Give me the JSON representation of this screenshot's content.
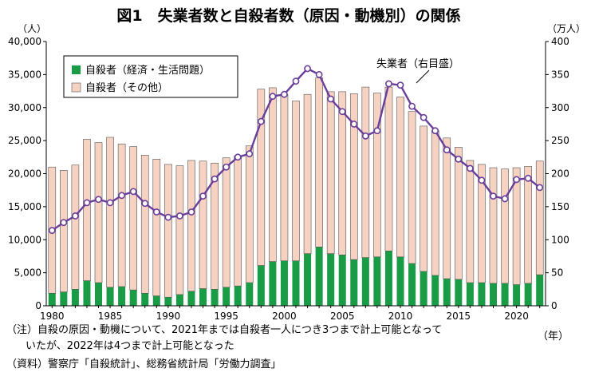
{
  "chart_data": {
    "type": "bar+line",
    "title": "図1　失業者数と自殺者数（原因・動機別）の関係",
    "y_left_unit": "（人）",
    "y_right_unit": "（万人）",
    "x_unit": "（年）",
    "y_left_range": [
      0,
      40000
    ],
    "y_right_range": [
      0,
      400
    ],
    "y_left_ticks": [
      "0",
      "5,000",
      "10,000",
      "15,000",
      "20,000",
      "25,000",
      "30,000",
      "35,000",
      "40,000"
    ],
    "y_right_ticks": [
      "0",
      "50",
      "100",
      "150",
      "200",
      "250",
      "300",
      "350",
      "400"
    ],
    "x_ticks": [
      "1980",
      "1985",
      "1990",
      "1995",
      "2000",
      "2005",
      "2010",
      "2015",
      "2020"
    ],
    "years": [
      1980,
      1981,
      1982,
      1983,
      1984,
      1985,
      1986,
      1987,
      1988,
      1989,
      1990,
      1991,
      1992,
      1993,
      1994,
      1995,
      1996,
      1997,
      1998,
      1999,
      2000,
      2001,
      2002,
      2003,
      2004,
      2005,
      2006,
      2007,
      2008,
      2009,
      2010,
      2011,
      2012,
      2013,
      2014,
      2015,
      2016,
      2017,
      2018,
      2019,
      2020,
      2021,
      2022
    ],
    "stacked": true,
    "series": [
      {
        "name": "自殺者（経済・生活問題）",
        "color": "#1a9c46",
        "axis": "left",
        "values": [
          1900,
          2100,
          2500,
          3800,
          3500,
          2800,
          2900,
          2400,
          1900,
          1500,
          1300,
          1700,
          2200,
          2600,
          2500,
          2800,
          3000,
          3500,
          6100,
          6700,
          6800,
          6800,
          7900,
          8900,
          7900,
          7700,
          7000,
          7300,
          7400,
          8300,
          7400,
          6400,
          5200,
          4600,
          4100,
          4000,
          3500,
          3500,
          3400,
          3400,
          3200,
          3400,
          4700
        ]
      },
      {
        "name": "自殺者（その他）",
        "color": "#f6d2c3",
        "axis": "left",
        "values": [
          19100,
          18400,
          18800,
          21400,
          21200,
          22700,
          21600,
          21700,
          20900,
          20700,
          20100,
          19500,
          19800,
          19300,
          19100,
          19600,
          19700,
          20700,
          26700,
          26300,
          25200,
          24200,
          24100,
          25600,
          24500,
          24700,
          25100,
          25800,
          24800,
          24800,
          24200,
          23000,
          22000,
          21900,
          21300,
          20000,
          18500,
          17900,
          17500,
          17300,
          17700,
          17700,
          17200
        ]
      },
      {
        "name": "失業者（右目盛）",
        "type": "line",
        "color": "#6a3d9a",
        "axis": "right",
        "values": [
          114,
          126,
          136,
          156,
          161,
          156,
          167,
          173,
          155,
          142,
          134,
          136,
          142,
          166,
          192,
          210,
          225,
          230,
          279,
          317,
          320,
          340,
          359,
          350,
          313,
          294,
          275,
          257,
          265,
          336,
          334,
          302,
          285,
          265,
          236,
          222,
          208,
          190,
          166,
          162,
          191,
          193,
          179
        ]
      }
    ],
    "legend": {
      "placement": "top-left",
      "entries": [
        "自殺者（経済・生活問題）",
        "自殺者（その他）"
      ]
    },
    "line_label": "失業者（右目盛）",
    "grid": false
  },
  "notes": {
    "line1": "（注）自殺の原因・動機について、2021年までは自殺者一人につき3つまで計上可能となって",
    "line2": "いたが、2022年は4つまで計上可能となった",
    "line3": "（資料）警察庁「自殺統計」、総務省統計局「労働力調査」"
  }
}
